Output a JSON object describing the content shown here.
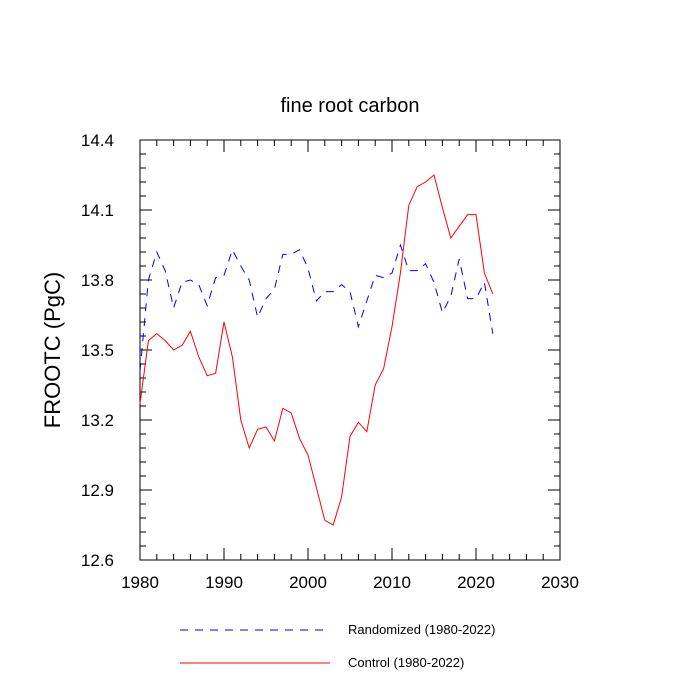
{
  "chart_data": {
    "type": "line",
    "title": "fine root carbon",
    "xlabel": "",
    "ylabel": "FROOTC  (PgC)",
    "xlim": [
      1980,
      2030
    ],
    "ylim": [
      12.6,
      14.4
    ],
    "x_ticks": [
      1980,
      1990,
      2000,
      2010,
      2020,
      2030
    ],
    "y_ticks": [
      12.6,
      12.9,
      13.2,
      13.5,
      13.8,
      14.1,
      14.4
    ],
    "y_tick_labels": [
      "12.6",
      "12.9",
      "13.2",
      "13.5",
      "13.8",
      "14.1",
      "14.4"
    ],
    "x": [
      1980,
      1981,
      1982,
      1983,
      1984,
      1985,
      1986,
      1987,
      1988,
      1989,
      1990,
      1991,
      1992,
      1993,
      1994,
      1995,
      1996,
      1997,
      1998,
      1999,
      2000,
      2001,
      2002,
      2003,
      2004,
      2005,
      2006,
      2007,
      2008,
      2009,
      2010,
      2011,
      2012,
      2013,
      2014,
      2015,
      2016,
      2017,
      2018,
      2019,
      2020,
      2021,
      2022
    ],
    "series": [
      {
        "name": "Randomized (1980-2022)",
        "color": "#0000ff",
        "style": "dashed",
        "values": [
          13.41,
          13.8,
          13.92,
          13.84,
          13.68,
          13.79,
          13.8,
          13.78,
          13.69,
          13.81,
          13.82,
          13.93,
          13.86,
          13.8,
          13.64,
          13.72,
          13.76,
          13.91,
          13.91,
          13.93,
          13.85,
          13.71,
          13.75,
          13.75,
          13.78,
          13.75,
          13.6,
          13.71,
          13.82,
          13.81,
          13.83,
          13.95,
          13.84,
          13.84,
          13.87,
          13.79,
          13.66,
          13.73,
          13.89,
          13.72,
          13.72,
          13.79,
          13.57
        ]
      },
      {
        "name": "Control (1980-2022)",
        "color": "#ff0000",
        "style": "solid",
        "values": [
          13.27,
          13.54,
          13.57,
          13.54,
          13.5,
          13.52,
          13.58,
          13.47,
          13.39,
          13.4,
          13.62,
          13.47,
          13.2,
          13.08,
          13.16,
          13.17,
          13.11,
          13.25,
          13.23,
          13.12,
          13.05,
          12.91,
          12.77,
          12.75,
          12.87,
          13.13,
          13.19,
          13.15,
          13.35,
          13.42,
          13.6,
          13.83,
          14.12,
          14.2,
          14.22,
          14.25,
          14.11,
          13.98,
          14.03,
          14.08,
          14.08,
          13.83,
          13.74
        ]
      }
    ],
    "legend_position": "bottom"
  }
}
